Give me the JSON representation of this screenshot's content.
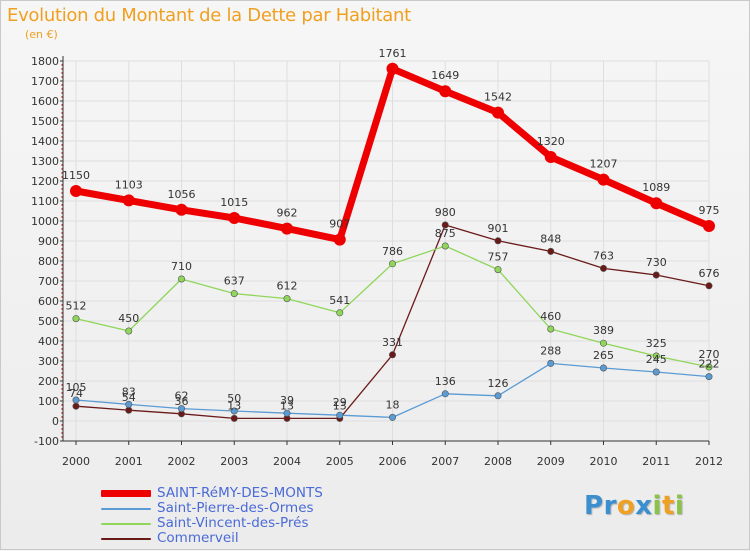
{
  "title": "Evolution du Montant de la Dette par Habitant",
  "unit": "(en €)",
  "logo_letters": [
    {
      "ch": "P",
      "color": "#3a8fd0"
    },
    {
      "ch": "r",
      "color": "#3a8fd0"
    },
    {
      "ch": "o",
      "color": "#f0a020"
    },
    {
      "ch": "x",
      "color": "#3a8fd0"
    },
    {
      "ch": "i",
      "color": "#8bc34a"
    },
    {
      "ch": "t",
      "color": "#f0a020"
    },
    {
      "ch": "i",
      "color": "#8bc34a"
    }
  ],
  "chart_data": {
    "type": "line",
    "title": "Evolution du Montant de la Dette par Habitant",
    "ylabel": "(en €)",
    "xlabel": "",
    "ylim": [
      -100,
      1800
    ],
    "yticks": [
      -100,
      0,
      100,
      200,
      300,
      400,
      500,
      600,
      700,
      800,
      900,
      1000,
      1100,
      1200,
      1300,
      1400,
      1500,
      1600,
      1700,
      1800
    ],
    "categories": [
      "2000",
      "2001",
      "2002",
      "2003",
      "2004",
      "2005",
      "2006",
      "2007",
      "2008",
      "2009",
      "2010",
      "2011",
      "2012"
    ],
    "legend_position": "bottom-left",
    "series": [
      {
        "name": "SAINT-RéMY-DES-MONTS",
        "color": "#ee0000",
        "values": [
          1150,
          1103,
          1056,
          1015,
          962,
          907,
          1761,
          1649,
          1542,
          1320,
          1207,
          1089,
          975
        ]
      },
      {
        "name": "Saint-Pierre-des-Ormes",
        "color": "#5a9bd4",
        "values": [
          105,
          83,
          62,
          50,
          39,
          29,
          18,
          136,
          126,
          288,
          265,
          245,
          222
        ]
      },
      {
        "name": "Saint-Vincent-des-Prés",
        "color": "#8fd65a",
        "values": [
          512,
          450,
          710,
          637,
          612,
          541,
          786,
          875,
          757,
          460,
          389,
          325,
          270
        ]
      },
      {
        "name": "Commerveil",
        "color": "#6b1a1a",
        "values": [
          74,
          54,
          36,
          13,
          13,
          13,
          331,
          980,
          901,
          848,
          763,
          730,
          676
        ]
      }
    ]
  }
}
